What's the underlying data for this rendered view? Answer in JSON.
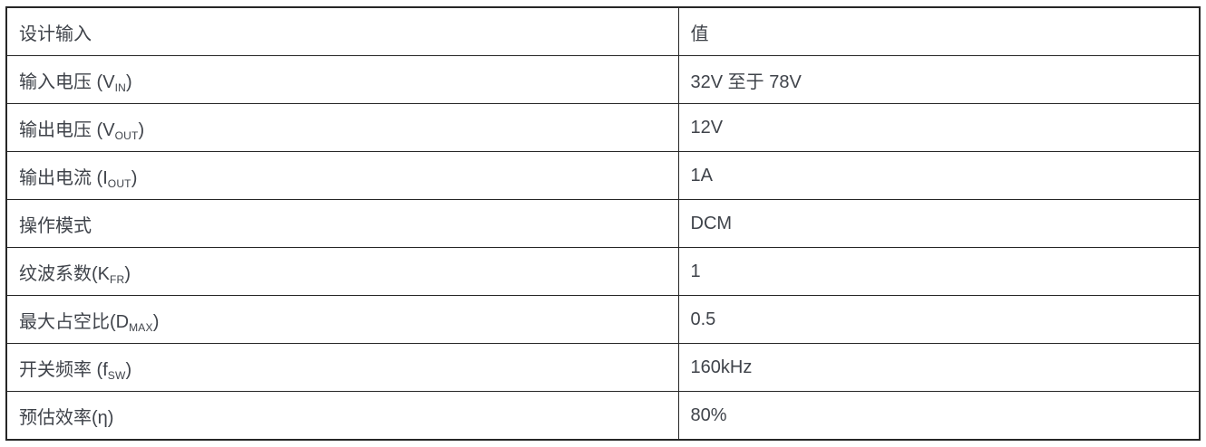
{
  "table": {
    "headers": [
      "设计输入",
      "值"
    ],
    "rows": [
      {
        "label_pre": "输入电压 (V",
        "label_sub": "IN",
        "label_post": ")",
        "value": "32V 至于 78V"
      },
      {
        "label_pre": "输出电压 (V",
        "label_sub": "OUT",
        "label_post": ")",
        "value": "12V"
      },
      {
        "label_pre": "输出电流 (I",
        "label_sub": "OUT",
        "label_post": ")",
        "value": "1A"
      },
      {
        "label_pre": "操作模式",
        "label_sub": "",
        "label_post": "",
        "value": "DCM"
      },
      {
        "label_pre": "纹波系数(K",
        "label_sub": "FR",
        "label_post": ")",
        "value": "1"
      },
      {
        "label_pre": "最大占空比(D",
        "label_sub": "MAX",
        "label_post": ")",
        "value": "0.5"
      },
      {
        "label_pre": "开关频率 (f",
        "label_sub": "SW",
        "label_post": ")",
        "value": "160kHz"
      },
      {
        "label_pre": "预估效率(η)",
        "label_sub": "",
        "label_post": "",
        "value": "80%"
      }
    ],
    "colors": {
      "border": "#262626",
      "text": "#3f434a",
      "background": "#ffffff"
    }
  }
}
